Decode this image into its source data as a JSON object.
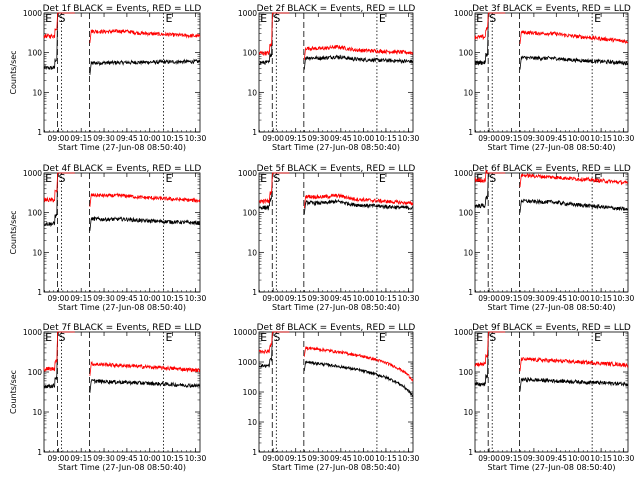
{
  "chart_data": [
    {
      "type": "line",
      "title": "Det 1f BLACK = Events, RED = LLD",
      "xlabel": "Start Time (27-Jun-08 08:50:40)",
      "ylabel": "Counts/sec",
      "yscale": "log",
      "ylim": [
        1,
        1000
      ],
      "yticks": [
        "1",
        "10",
        "100",
        "1000"
      ],
      "xticks": [
        "09:00",
        "09:15",
        "09:30",
        "09:45",
        "10:00",
        "10:15",
        "10:30"
      ],
      "xlim_hours": [
        8.843,
        10.55
      ],
      "markers": [
        "E",
        "S",
        "E"
      ],
      "grid": false,
      "legend": "in title",
      "series": [
        {
          "color": "black",
          "base": 55,
          "end": 60,
          "hump": 0
        },
        {
          "color": "red",
          "base": 350,
          "end": 260,
          "hump": 0.08
        }
      ]
    },
    {
      "type": "line",
      "title": "Det 2f BLACK = Events, RED = LLD",
      "xlabel": "Start Time (27-Jun-08 08:50:40)",
      "ylabel": "",
      "yscale": "log",
      "ylim": [
        1,
        1000
      ],
      "yticks": [
        "1",
        "10",
        "100",
        "1000"
      ],
      "xticks": [
        "09:00",
        "09:15",
        "09:30",
        "09:45",
        "10:00",
        "10:15",
        "10:30"
      ],
      "xlim_hours": [
        8.843,
        10.55
      ],
      "markers": [
        "E",
        "S",
        "E"
      ],
      "grid": false,
      "legend": "in title",
      "series": [
        {
          "color": "black",
          "base": 75,
          "end": 60,
          "hump": 0.12
        },
        {
          "color": "red",
          "base": 130,
          "end": 100,
          "hump": 0.15
        }
      ]
    },
    {
      "type": "line",
      "title": "Det 3f BLACK = Events, RED = LLD",
      "xlabel": "Start Time (27-Jun-08 08:50:40)",
      "ylabel": "",
      "yscale": "log",
      "ylim": [
        1,
        1000
      ],
      "yticks": [
        "1",
        "10",
        "100",
        "1000"
      ],
      "xticks": [
        "09:00",
        "09:15",
        "09:30",
        "09:45",
        "10:00",
        "10:15",
        "10:30"
      ],
      "xlim_hours": [
        8.843,
        10.55
      ],
      "markers": [
        "E",
        "S",
        "E"
      ],
      "grid": false,
      "legend": "in title",
      "series": [
        {
          "color": "black",
          "base": 75,
          "end": 55,
          "hump": 0.05
        },
        {
          "color": "red",
          "base": 330,
          "end": 190,
          "hump": 0.05
        }
      ]
    },
    {
      "type": "line",
      "title": "Det 4f BLACK = Events, RED = LLD",
      "xlabel": "Start Time (27-Jun-08 08:50:40)",
      "ylabel": "Counts/sec",
      "yscale": "log",
      "ylim": [
        1,
        1000
      ],
      "yticks": [
        "1",
        "10",
        "100",
        "1000"
      ],
      "xticks": [
        "09:00",
        "09:15",
        "09:30",
        "09:45",
        "10:00",
        "10:15",
        "10:30"
      ],
      "xlim_hours": [
        8.843,
        10.55
      ],
      "markers": [
        "E",
        "S",
        "E"
      ],
      "grid": false,
      "legend": "in title",
      "series": [
        {
          "color": "black",
          "base": 70,
          "end": 55,
          "hump": 0.05
        },
        {
          "color": "red",
          "base": 280,
          "end": 200,
          "hump": 0.05
        }
      ]
    },
    {
      "type": "line",
      "title": "Det 5f BLACK = Events, RED = LLD",
      "xlabel": "Start Time (27-Jun-08 08:50:40)",
      "ylabel": "",
      "yscale": "log",
      "ylim": [
        1,
        1000
      ],
      "yticks": [
        "1",
        "10",
        "100",
        "1000"
      ],
      "xticks": [
        "09:00",
        "09:15",
        "09:30",
        "09:45",
        "10:00",
        "10:15",
        "10:30"
      ],
      "xlim_hours": [
        8.843,
        10.55
      ],
      "markers": [
        "E",
        "S",
        "E"
      ],
      "grid": false,
      "legend": "in title",
      "series": [
        {
          "color": "black",
          "base": 180,
          "end": 130,
          "hump": 0.15
        },
        {
          "color": "red",
          "base": 260,
          "end": 170,
          "hump": 0.15
        }
      ]
    },
    {
      "type": "line",
      "title": "Det 6f BLACK = Events, RED = LLD",
      "xlabel": "Start Time (27-Jun-08 08:50:40)",
      "ylabel": "",
      "yscale": "log",
      "ylim": [
        1,
        1000
      ],
      "yticks": [
        "1",
        "10",
        "100",
        "1000"
      ],
      "xticks": [
        "09:00",
        "09:15",
        "09:30",
        "09:45",
        "10:00",
        "10:15",
        "10:30"
      ],
      "xlim_hours": [
        8.843,
        10.55
      ],
      "markers": [
        "E",
        "S",
        "E"
      ],
      "grid": false,
      "legend": "in title",
      "series": [
        {
          "color": "black",
          "base": 200,
          "end": 120,
          "hump": 0.05
        },
        {
          "color": "red",
          "base": 880,
          "end": 560,
          "hump": 0.0
        }
      ]
    },
    {
      "type": "line",
      "title": "Det 7f BLACK = Events, RED = LLD",
      "xlabel": "Start Time (27-Jun-08 08:50:40)",
      "ylabel": "Counts/sec",
      "yscale": "log",
      "ylim": [
        1,
        1000
      ],
      "yticks": [
        "1",
        "10",
        "100",
        "1000"
      ],
      "xticks": [
        "09:00",
        "09:15",
        "09:30",
        "09:45",
        "10:00",
        "10:15",
        "10:30"
      ],
      "xlim_hours": [
        8.843,
        10.55
      ],
      "markers": [
        "E",
        "S",
        "E"
      ],
      "grid": false,
      "legend": "in title",
      "series": [
        {
          "color": "black",
          "base": 60,
          "end": 45,
          "hump": 0.0
        },
        {
          "color": "red",
          "base": 160,
          "end": 110,
          "hump": 0.0
        }
      ]
    },
    {
      "type": "line",
      "title": "Det 8f BLACK = Events, RED = LLD",
      "xlabel": "Start Time (27-Jun-08 08:50:40)",
      "ylabel": "",
      "yscale": "log",
      "ylim": [
        1,
        10000
      ],
      "yticks": [
        "1",
        "10",
        "100",
        "1000",
        "10000"
      ],
      "xticks": [
        "09:00",
        "09:15",
        "09:30",
        "09:45",
        "10:00",
        "10:15",
        "10:30"
      ],
      "xlim_hours": [
        8.843,
        10.55
      ],
      "markers": [
        "E",
        "S",
        "E"
      ],
      "grid": false,
      "legend": "in title",
      "series": [
        {
          "color": "black",
          "base": 1000,
          "end": 70,
          "hump": 0.0
        },
        {
          "color": "red",
          "base": 3000,
          "end": 240,
          "hump": 0.0
        }
      ]
    },
    {
      "type": "line",
      "title": "Det 9f BLACK = Events, RED = LLD",
      "xlabel": "Start Time (27-Jun-08 08:50:40)",
      "ylabel": "",
      "yscale": "log",
      "ylim": [
        1,
        1000
      ],
      "yticks": [
        "1",
        "10",
        "100",
        "1000"
      ],
      "xticks": [
        "09:00",
        "09:15",
        "09:30",
        "09:45",
        "10:00",
        "10:15",
        "10:30"
      ],
      "xlim_hours": [
        8.843,
        10.55
      ],
      "markers": [
        "E",
        "S",
        "E"
      ],
      "grid": false,
      "legend": "in title",
      "series": [
        {
          "color": "black",
          "base": 65,
          "end": 50,
          "hump": 0.0
        },
        {
          "color": "red",
          "base": 210,
          "end": 150,
          "hump": 0.0
        }
      ]
    }
  ],
  "colors": {
    "events": "#000000",
    "lld": "#ff0000",
    "axes": "#000000"
  }
}
